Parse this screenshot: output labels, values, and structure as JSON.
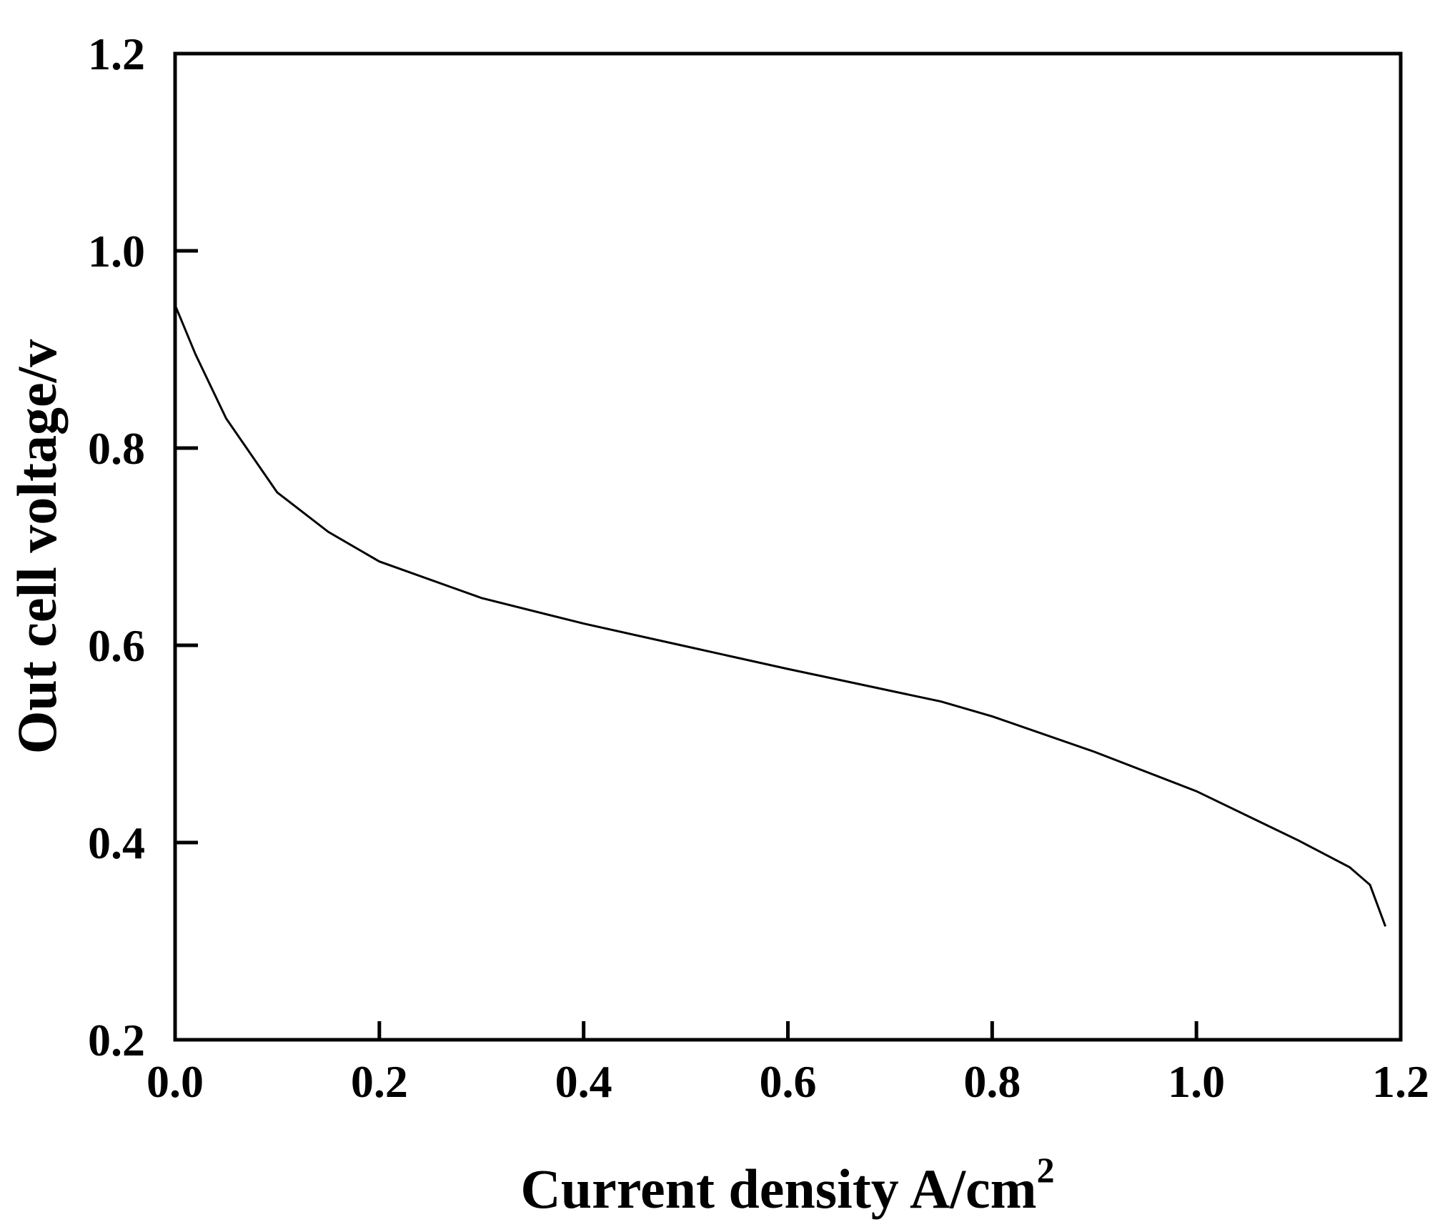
{
  "chart_data": {
    "type": "line",
    "title": "",
    "xlabel": "Current density A/cm",
    "xlabel_superscript": "2",
    "ylabel": "Out cell voltage/v",
    "xlim": [
      0.0,
      1.2
    ],
    "ylim": [
      0.2,
      1.2
    ],
    "x_ticks": [
      "0.0",
      "0.2",
      "0.4",
      "0.6",
      "0.8",
      "1.0",
      "1.2"
    ],
    "y_ticks": [
      "0.2",
      "0.4",
      "0.6",
      "0.8",
      "1.0",
      "1.2"
    ],
    "grid": false,
    "line_color": "#000000",
    "series": [
      {
        "x": [
          0.0,
          0.02,
          0.05,
          0.1,
          0.15,
          0.2,
          0.3,
          0.4,
          0.5,
          0.6,
          0.7,
          0.75,
          0.8,
          0.9,
          1.0,
          1.1,
          1.15,
          1.17,
          1.185
        ],
        "y": [
          0.945,
          0.895,
          0.83,
          0.755,
          0.715,
          0.685,
          0.648,
          0.622,
          0.599,
          0.576,
          0.554,
          0.543,
          0.528,
          0.492,
          0.452,
          0.402,
          0.375,
          0.357,
          0.315
        ]
      }
    ]
  }
}
